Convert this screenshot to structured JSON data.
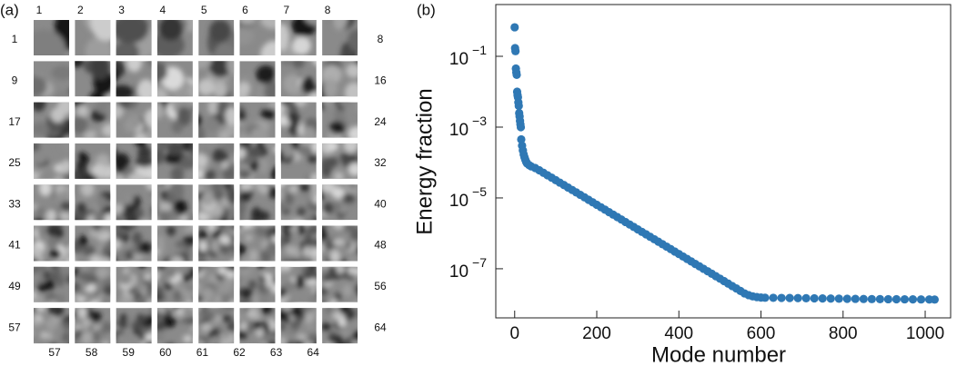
{
  "panel_a": {
    "label": "(a)",
    "column_labels": [
      "1",
      "2",
      "3",
      "4",
      "5",
      "6",
      "7",
      "8"
    ],
    "left_row_labels": [
      "1",
      "9",
      "17",
      "25",
      "33",
      "41",
      "49",
      "57"
    ],
    "right_row_labels": [
      "8",
      "16",
      "24",
      "32",
      "40",
      "48",
      "56",
      "64"
    ],
    "bottom_labels": [
      "57",
      "58",
      "59",
      "60",
      "61",
      "62",
      "63",
      "64"
    ]
  },
  "chart_data": {
    "type": "scatter",
    "panel_label": "(b)",
    "x_label": "Mode number",
    "y_label": "Energy fraction",
    "color": "#2f78b4",
    "log_y": true,
    "xlim": [
      -46,
      1062
    ],
    "ylim": [
      4.1e-09,
      2.9
    ],
    "xticks": [
      0,
      200,
      400,
      600,
      800,
      1000
    ],
    "yticks": [
      {
        "value": 0.1,
        "label": "10−1"
      },
      {
        "value": 0.001,
        "label": "10−3"
      },
      {
        "value": 1e-05,
        "label": "10−5"
      },
      {
        "value": 1e-07,
        "label": "10−7"
      }
    ],
    "x": [
      0,
      1,
      2,
      3,
      4,
      5,
      6,
      7,
      8,
      9,
      10,
      11,
      12,
      13,
      14,
      15,
      16,
      18,
      20,
      22,
      24,
      26,
      28,
      30,
      35,
      40,
      50,
      60,
      70,
      80,
      90,
      100,
      110,
      120,
      130,
      140,
      150,
      160,
      170,
      180,
      190,
      200,
      210,
      220,
      230,
      240,
      250,
      260,
      270,
      280,
      290,
      300,
      310,
      320,
      330,
      340,
      350,
      360,
      370,
      380,
      390,
      400,
      410,
      420,
      430,
      440,
      450,
      460,
      470,
      480,
      490,
      500,
      510,
      520,
      530,
      540,
      550,
      560,
      570,
      580,
      590,
      600,
      610,
      630,
      650,
      670,
      690,
      710,
      730,
      750,
      770,
      790,
      810,
      830,
      850,
      870,
      890,
      910,
      930,
      950,
      970,
      990,
      1010,
      1023
    ],
    "values": [
      0.66,
      0.17,
      0.14,
      0.045,
      0.035,
      0.03,
      0.01,
      0.008,
      0.007,
      0.005,
      0.004,
      0.0025,
      0.002,
      0.0015,
      0.0012,
      0.001,
      0.00045,
      0.0003,
      0.00022,
      0.00017,
      0.00014,
      0.00012,
      0.000105,
      9.5e-05,
      8.5e-05,
      7.8e-05,
      7e-05,
      6.03e-05,
      5.14e-05,
      4.38e-05,
      3.73e-05,
      3.18e-05,
      2.71e-05,
      2.31e-05,
      1.97e-05,
      1.68e-05,
      1.43e-05,
      1.22e-05,
      1.04e-05,
      8.85e-06,
      7.54e-06,
      6.42e-06,
      5.47e-06,
      4.66e-06,
      3.97e-06,
      3.38e-06,
      2.88e-06,
      2.46e-06,
      2.09e-06,
      1.78e-06,
      1.52e-06,
      1.29e-06,
      1.1e-06,
      9.39e-07,
      8e-07,
      6.82e-07,
      5.81e-07,
      4.95e-07,
      4.22e-07,
      3.59e-07,
      3.06e-07,
      2.61e-07,
      2.22e-07,
      1.89e-07,
      1.61e-07,
      1.37e-07,
      1.17e-07,
      9.98e-08,
      8.5e-08,
      7.24e-08,
      6.17e-08,
      5.26e-08,
      4.48e-08,
      3.82e-08,
      3.25e-08,
      2.77e-08,
      2.36e-08,
      2.01e-08,
      1.8e-08,
      1.66e-08,
      1.58e-08,
      1.54e-08,
      1.52e-08,
      1.51e-08,
      1.5e-08,
      1.49e-08,
      1.48e-08,
      1.47e-08,
      1.46e-08,
      1.45e-08,
      1.44e-08,
      1.43e-08,
      1.42e-08,
      1.41e-08,
      1.4e-08,
      1.39e-08,
      1.385e-08,
      1.38e-08,
      1.375e-08,
      1.37e-08,
      1.365e-08,
      1.36e-08,
      1.355e-08,
      1.35e-08
    ]
  }
}
